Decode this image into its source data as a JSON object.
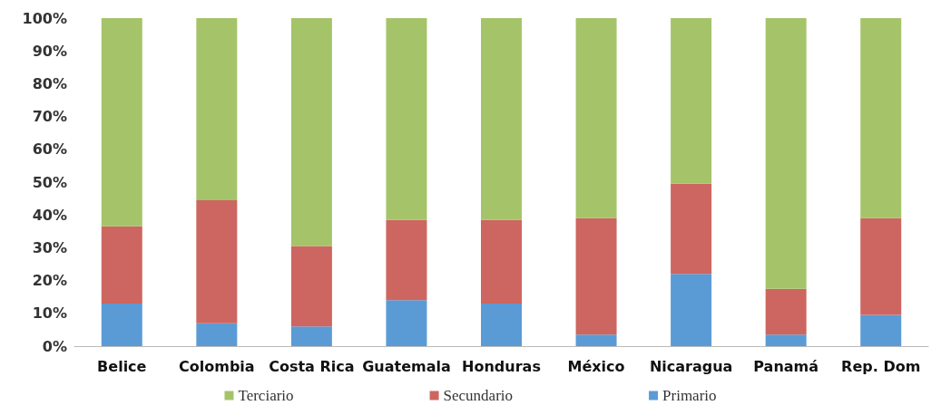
{
  "chart_data": {
    "type": "bar",
    "stacked": true,
    "categories": [
      "Belice",
      "Colombia",
      "Costa Rica",
      "Guatemala",
      "Honduras",
      "México",
      "Nicaragua",
      "Panamá",
      "Rep. Dom"
    ],
    "series": [
      {
        "name": "Primario",
        "color": "#5b9bd5",
        "values": [
          13,
          7,
          6,
          14,
          13,
          3.5,
          22,
          3.5,
          9.5
        ]
      },
      {
        "name": "Secundario",
        "color": "#cd6660",
        "values": [
          23.5,
          37.5,
          24.5,
          24.5,
          25.5,
          35.5,
          27.5,
          14,
          29.5
        ]
      },
      {
        "name": "Terciario",
        "color": "#a5c46a",
        "values": [
          63.5,
          55.5,
          69.5,
          61.5,
          61.5,
          61,
          50.5,
          82.5,
          61
        ]
      }
    ],
    "ylim": [
      0,
      100
    ],
    "yticks": [
      {
        "value": 0,
        "label": "0%"
      },
      {
        "value": 10,
        "label": "10%"
      },
      {
        "value": 20,
        "label": "20%"
      },
      {
        "value": 30,
        "label": "30%"
      },
      {
        "value": 40,
        "label": "40%"
      },
      {
        "value": 50,
        "label": "50%"
      },
      {
        "value": 60,
        "label": "60%"
      },
      {
        "value": 70,
        "label": "70%"
      },
      {
        "value": 80,
        "label": "80%"
      },
      {
        "value": 90,
        "label": "90%"
      },
      {
        "value": 100,
        "label": "100%"
      }
    ],
    "grid": false,
    "legend": "bottom"
  }
}
